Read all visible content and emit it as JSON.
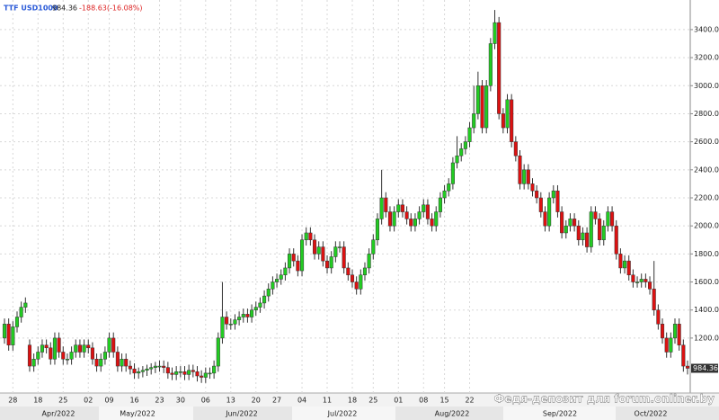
{
  "chart_data": {
    "type": "candlestick",
    "symbol": "TTF USD1000",
    "change": "-188.63(-16.08%)",
    "watermark": "Федя-депозит для forum.onliner.by",
    "up_color": "#22cc22",
    "down_color": "#dd1111",
    "grid": true,
    "ylim": [
      808,
      3547
    ],
    "yticks": [
      {
        "value": 1200,
        "label": "1200.00"
      },
      {
        "value": 1400,
        "label": "1400.00"
      },
      {
        "value": 1600,
        "label": "1600.00"
      },
      {
        "value": 1800,
        "label": "1800.00"
      },
      {
        "value": 2000,
        "label": "2000.00"
      },
      {
        "value": 2200,
        "label": "2200.00"
      },
      {
        "value": 2400,
        "label": "2400.00"
      },
      {
        "value": 2600,
        "label": "2600.00"
      },
      {
        "value": 2800,
        "label": "2800.00"
      },
      {
        "value": 3000,
        "label": "3000.00"
      },
      {
        "value": 3200,
        "label": "3200.00"
      },
      {
        "value": 3400,
        "label": "3400.00"
      }
    ],
    "xticks": [
      {
        "value": 2,
        "label": "28"
      },
      {
        "value": 8,
        "label": "18"
      },
      {
        "value": 14,
        "label": "25"
      },
      {
        "value": 20,
        "label": "02"
      },
      {
        "value": 25,
        "label": "09"
      },
      {
        "value": 31,
        "label": "16"
      },
      {
        "value": 37,
        "label": "23"
      },
      {
        "value": 42,
        "label": "30"
      },
      {
        "value": 48,
        "label": "06"
      },
      {
        "value": 54,
        "label": "13"
      },
      {
        "value": 60,
        "label": "20"
      },
      {
        "value": 65,
        "label": "27"
      },
      {
        "value": 71,
        "label": "04"
      },
      {
        "value": 77,
        "label": "11"
      },
      {
        "value": 83,
        "label": "18"
      },
      {
        "value": 88,
        "label": "25"
      },
      {
        "value": 94,
        "label": "01"
      },
      {
        "value": 100,
        "label": "08"
      },
      {
        "value": 105,
        "label": "15"
      },
      {
        "value": 111,
        "label": "22"
      }
    ],
    "months": [
      "Apr/2022",
      "May/2022",
      "Jun/2022",
      "Jul/2022",
      "Aug/2022",
      "Sep/2022",
      "Oct/2022"
    ],
    "open": [
      1200,
      1300,
      1150,
      1280,
      1350,
      1420,
      1150,
      1000,
      1050,
      1100,
      1150,
      1130,
      1050,
      1200,
      1100,
      1050,
      1050,
      1100,
      1150,
      1100,
      1150,
      1130,
      1050,
      1000,
      1050,
      1100,
      1200,
      1100,
      1000,
      1050,
      1000,
      980,
      950,
      960,
      970,
      980,
      990,
      1000,
      1000,
      990,
      950,
      940,
      960,
      960,
      940,
      970,
      960,
      930,
      920,
      950,
      950,
      1000,
      1200,
      1350,
      1300,
      1300,
      1330,
      1350,
      1370,
      1350,
      1400,
      1420,
      1450,
      1500,
      1550,
      1600,
      1620,
      1650,
      1700,
      1800,
      1750,
      1680,
      1900,
      1950,
      1900,
      1800,
      1850,
      1750,
      1700,
      1780,
      1850,
      1850,
      1700,
      1650,
      1600,
      1550,
      1650,
      1700,
      1800,
      1900,
      2050,
      2200,
      2100,
      2000,
      2100,
      2150,
      2100,
      2050,
      2000,
      2050,
      2100,
      2150,
      2050,
      2000,
      2100,
      2200,
      2250,
      2300,
      2450,
      2500,
      2550,
      2600,
      2700,
      2800,
      3000,
      2700,
      3000,
      3300,
      3450,
      2800,
      2700,
      2900,
      2600,
      2500,
      2300,
      2400,
      2300,
      2250,
      2200,
      2100,
      2000,
      2200,
      2250,
      2100,
      1950,
      2000,
      2050,
      2000,
      1900,
      1950,
      1850,
      2100,
      2050,
      1900,
      2000,
      2100,
      2000,
      1800,
      1700,
      1750,
      1650,
      1600,
      1600,
      1620,
      1600,
      1550,
      1400,
      1300,
      1200,
      1100,
      1200,
      1300,
      1150,
      1000
    ],
    "high": [
      1340,
      1340,
      1320,
      1390,
      1460,
      1490,
      1190,
      1090,
      1140,
      1190,
      1190,
      1170,
      1240,
      1240,
      1140,
      1090,
      1140,
      1190,
      1190,
      1190,
      1190,
      1170,
      1090,
      1090,
      1140,
      1240,
      1240,
      1140,
      1090,
      1090,
      1040,
      1020,
      990,
      1000,
      1010,
      1020,
      1030,
      1040,
      1040,
      1030,
      990,
      1000,
      1000,
      1000,
      1010,
      1010,
      1000,
      970,
      990,
      990,
      1040,
      1240,
      1600,
      1390,
      1340,
      1370,
      1390,
      1410,
      1410,
      1440,
      1460,
      1490,
      1540,
      1590,
      1640,
      1660,
      1690,
      1740,
      1840,
      1840,
      1790,
      1940,
      1990,
      1990,
      1940,
      1890,
      1890,
      1790,
      1820,
      1890,
      1890,
      1890,
      1740,
      1690,
      1640,
      1690,
      1740,
      1840,
      1940,
      2090,
      2400,
      2240,
      2140,
      2140,
      2190,
      2190,
      2140,
      2090,
      2090,
      2140,
      2190,
      2190,
      2090,
      2140,
      2240,
      2290,
      2340,
      2490,
      2640,
      2590,
      2640,
      2740,
      3000,
      3100,
      3040,
      3040,
      3340,
      3540,
      3490,
      2840,
      2940,
      2940,
      2640,
      2540,
      2440,
      2440,
      2340,
      2290,
      2240,
      2140,
      2240,
      2290,
      2290,
      2140,
      2040,
      2090,
      2090,
      2040,
      1990,
      1990,
      2140,
      2140,
      2090,
      2040,
      2140,
      2140,
      2040,
      1840,
      1790,
      1790,
      1690,
      1640,
      1660,
      1660,
      1640,
      1750,
      1440,
      1340,
      1240,
      1240,
      1340,
      1340,
      1190,
      1040
    ],
    "low": [
      1160,
      1110,
      1110,
      1240,
      1310,
      1380,
      960,
      960,
      1010,
      1060,
      1090,
      1010,
      1010,
      1060,
      1010,
      1010,
      1010,
      1060,
      1060,
      1060,
      1090,
      1010,
      960,
      960,
      1010,
      1060,
      1060,
      960,
      960,
      960,
      940,
      910,
      910,
      920,
      930,
      940,
      950,
      960,
      950,
      910,
      900,
      900,
      920,
      900,
      900,
      920,
      890,
      880,
      880,
      910,
      910,
      960,
      1160,
      1260,
      1260,
      1260,
      1290,
      1310,
      1310,
      1310,
      1360,
      1380,
      1410,
      1460,
      1510,
      1560,
      1580,
      1610,
      1660,
      1710,
      1640,
      1640,
      1860,
      1860,
      1760,
      1760,
      1710,
      1660,
      1660,
      1740,
      1810,
      1660,
      1610,
      1560,
      1510,
      1510,
      1610,
      1660,
      1760,
      1860,
      2010,
      2060,
      1960,
      1960,
      2060,
      2060,
      2010,
      1960,
      1960,
      2010,
      2060,
      2010,
      1960,
      1960,
      2060,
      2160,
      2210,
      2260,
      2410,
      2460,
      2510,
      2560,
      2660,
      2760,
      2660,
      2660,
      2960,
      3260,
      2760,
      2660,
      2660,
      2560,
      2460,
      2260,
      2260,
      2260,
      2210,
      2160,
      2060,
      1960,
      1960,
      2160,
      2060,
      1910,
      1910,
      1960,
      1960,
      1860,
      1860,
      1810,
      1810,
      2010,
      1860,
      1860,
      1960,
      1960,
      1760,
      1660,
      1660,
      1610,
      1560,
      1560,
      1560,
      1560,
      1510,
      1360,
      1260,
      1160,
      1060,
      1060,
      1160,
      1110,
      960,
      940
    ],
    "close": [
      1300,
      1150,
      1280,
      1350,
      1420,
      1450,
      1000,
      1050,
      1100,
      1150,
      1130,
      1050,
      1200,
      1100,
      1050,
      1050,
      1100,
      1150,
      1100,
      1150,
      1130,
      1050,
      1000,
      1050,
      1100,
      1200,
      1100,
      1000,
      1050,
      1000,
      980,
      950,
      960,
      970,
      980,
      990,
      1000,
      1000,
      990,
      950,
      940,
      960,
      960,
      940,
      970,
      960,
      930,
      920,
      950,
      950,
      1000,
      1200,
      1350,
      1300,
      1300,
      1330,
      1350,
      1370,
      1350,
      1400,
      1420,
      1450,
      1500,
      1550,
      1600,
      1620,
      1650,
      1700,
      1800,
      1750,
      1680,
      1900,
      1950,
      1900,
      1800,
      1850,
      1750,
      1700,
      1780,
      1850,
      1850,
      1700,
      1650,
      1600,
      1550,
      1650,
      1700,
      1800,
      1900,
      2050,
      2200,
      2100,
      2000,
      2100,
      2150,
      2100,
      2050,
      2000,
      2050,
      2100,
      2150,
      2050,
      2000,
      2100,
      2200,
      2250,
      2300,
      2450,
      2500,
      2550,
      2600,
      2700,
      2800,
      3000,
      2700,
      3000,
      3300,
      3450,
      2800,
      2700,
      2900,
      2600,
      2500,
      2300,
      2400,
      2300,
      2250,
      2200,
      2100,
      2000,
      2200,
      2250,
      2100,
      1950,
      2000,
      2050,
      2000,
      1900,
      1950,
      1850,
      2100,
      2050,
      1900,
      2000,
      2100,
      2000,
      1800,
      1700,
      1750,
      1650,
      1600,
      1600,
      1620,
      1600,
      1550,
      1400,
      1300,
      1200,
      1100,
      1200,
      1300,
      1150,
      1000,
      984.36
    ]
  }
}
